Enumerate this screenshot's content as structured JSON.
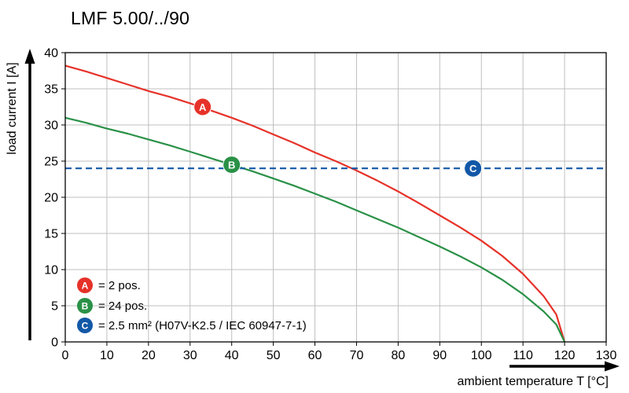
{
  "title": "LMF 5.00/../90",
  "chart_data": {
    "type": "line",
    "title": "LMF 5.00/../90",
    "xlabel": "ambient temperature T [°C]",
    "ylabel": "load current I [A]",
    "xlim": [
      0,
      130
    ],
    "ylim": [
      0,
      40
    ],
    "xticks": [
      0,
      10,
      20,
      30,
      40,
      50,
      60,
      70,
      80,
      90,
      100,
      110,
      120,
      130
    ],
    "yticks": [
      0,
      5,
      10,
      15,
      20,
      25,
      30,
      35,
      40
    ],
    "grid": true,
    "legend_position": "bottom-left-inside",
    "series": [
      {
        "name": "A",
        "color": "#e63229",
        "dash": null,
        "legend": "= 2 pos.",
        "marker": {
          "x": 33,
          "y": 32.5,
          "label": "A"
        },
        "points": [
          [
            0,
            38.2
          ],
          [
            5,
            37.4
          ],
          [
            10,
            36.5
          ],
          [
            15,
            35.6
          ],
          [
            20,
            34.7
          ],
          [
            25,
            33.9
          ],
          [
            30,
            33.0
          ],
          [
            35,
            32.0
          ],
          [
            40,
            31.0
          ],
          [
            45,
            29.9
          ],
          [
            50,
            28.7
          ],
          [
            55,
            27.5
          ],
          [
            60,
            26.2
          ],
          [
            65,
            25.0
          ],
          [
            70,
            23.7
          ],
          [
            75,
            22.3
          ],
          [
            80,
            20.8
          ],
          [
            85,
            19.2
          ],
          [
            90,
            17.5
          ],
          [
            95,
            15.8
          ],
          [
            100,
            14.0
          ],
          [
            105,
            11.9
          ],
          [
            110,
            9.4
          ],
          [
            115,
            6.3
          ],
          [
            118,
            3.8
          ],
          [
            120,
            0
          ]
        ]
      },
      {
        "name": "B",
        "color": "#2a9147",
        "dash": null,
        "legend": "= 24 pos.",
        "marker": {
          "x": 40,
          "y": 24.5,
          "label": "B"
        },
        "points": [
          [
            0,
            31.0
          ],
          [
            5,
            30.3
          ],
          [
            10,
            29.5
          ],
          [
            15,
            28.8
          ],
          [
            20,
            28.0
          ],
          [
            25,
            27.2
          ],
          [
            30,
            26.3
          ],
          [
            35,
            25.4
          ],
          [
            40,
            24.5
          ],
          [
            45,
            23.6
          ],
          [
            50,
            22.6
          ],
          [
            55,
            21.6
          ],
          [
            60,
            20.5
          ],
          [
            65,
            19.4
          ],
          [
            70,
            18.2
          ],
          [
            75,
            17.0
          ],
          [
            80,
            15.8
          ],
          [
            85,
            14.5
          ],
          [
            90,
            13.2
          ],
          [
            95,
            11.8
          ],
          [
            100,
            10.3
          ],
          [
            105,
            8.6
          ],
          [
            110,
            6.6
          ],
          [
            115,
            4.2
          ],
          [
            118,
            2.4
          ],
          [
            120,
            0
          ]
        ]
      },
      {
        "name": "C",
        "color": "#1258a7",
        "dash": "8 5",
        "legend": "= 2.5 mm² (H07V-K2.5 / IEC 60947-7-1)",
        "marker": {
          "x": 98,
          "y": 24,
          "label": "C"
        },
        "points": [
          [
            0,
            24
          ],
          [
            130,
            24
          ]
        ]
      }
    ]
  }
}
